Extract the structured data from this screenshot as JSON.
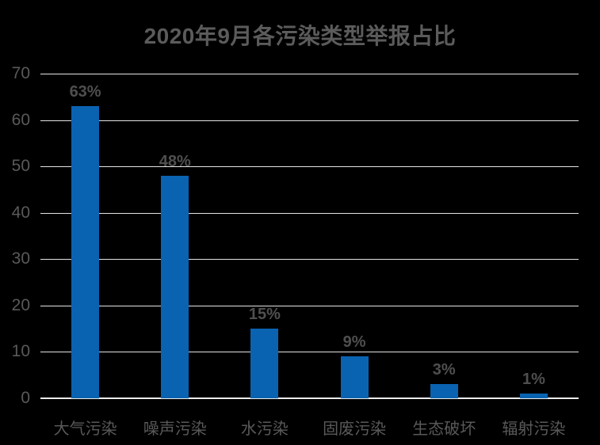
{
  "chart_data": {
    "type": "bar",
    "title": "2020年9月各污染类型举报占比",
    "categories": [
      "大气污染",
      "噪声污染",
      "水污染",
      "固废污染",
      "生态破坏",
      "辐射污染"
    ],
    "values": [
      63,
      48,
      15,
      9,
      3,
      1
    ],
    "data_labels": [
      "63%",
      "48%",
      "15%",
      "9%",
      "3%",
      "1%"
    ],
    "xlabel": "",
    "ylabel": "",
    "ylim": [
      0,
      70
    ],
    "yticks": [
      0,
      10,
      20,
      30,
      40,
      50,
      60,
      70
    ],
    "grid": "horizontal",
    "legend": "none",
    "colors": {
      "background": "#000000",
      "bar": "#0a63b1",
      "gridline": "#e3e3e3",
      "title_text": "#5b5b5b",
      "axis_text": "#595959",
      "data_label_text": "#4f4f4f"
    }
  }
}
